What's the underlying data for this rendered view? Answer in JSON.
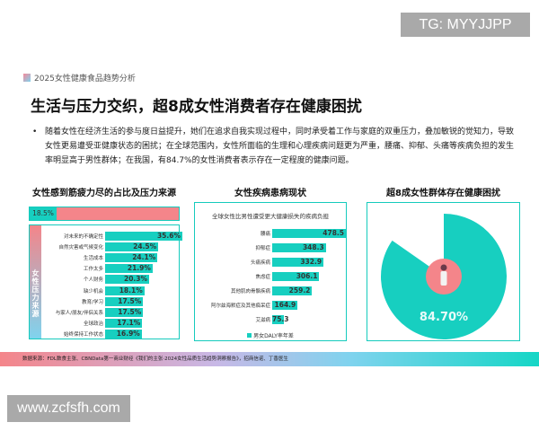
{
  "watermarks": {
    "top": "TG: MYYJJPP",
    "bottom": "www.zcfsfh.com"
  },
  "header": {
    "report": "2025女性健康食品趋势分析"
  },
  "title": "生活与压力交织，超8成女性消费者存在健康困扰",
  "paragraph": "随着女性在经济生活的参与度日益提升，她们在追求自我实现过程中，同时承受着工作与家庭的双重压力，叠加敏锐的觉知力，导致女性更易遭受亚健康状态的困扰；在全球范围内，女性所面临的生理和心理疾病问题更为严重，腰痛、抑郁、头痛等疾病负担的发生率明显高于男性群体；在我国，有84.7%的女性消费者表示存在一定程度的健康问题。",
  "colors": {
    "teal": "#17cfc0",
    "pink": "#f4858a"
  },
  "chart_data": [
    {
      "type": "bar",
      "title": "女性感到筋疲力尽的占比及压力来源",
      "overall_label": "18.5%",
      "overall_value": 18.5,
      "side_label": "女性压力来源",
      "categories": [
        "对未来的不确定性",
        "自然灾害或气候变化",
        "生活成本",
        "工作太多",
        "个人财务",
        "缺少机会",
        "教育/学习",
        "与家人/朋友/伴侣关系",
        "全球政治",
        "始终保持工作状态"
      ],
      "values": [
        35.6,
        24.5,
        24.1,
        21.9,
        20.3,
        18.1,
        17.5,
        17.5,
        17.1,
        16.9
      ],
      "labels": [
        "35.6%",
        "24.5%",
        "24.1%",
        "21.9%",
        "20.3%",
        "18.1%",
        "17.5%",
        "17.5%",
        "17.1%",
        "16.9%"
      ]
    },
    {
      "type": "bar",
      "title": "女性疾病患病现状",
      "subtitle": "全球女性比男性遭受更大健康损失的疾病负担",
      "categories": [
        "腰痛",
        "抑郁症",
        "头痛疾病",
        "焦虑症",
        "其他肌肉骨骼疾病",
        "阿尔兹海默症及其他痴呆症",
        "艾滋病"
      ],
      "values": [
        478.5,
        348.3,
        332.9,
        306.1,
        259.2,
        164.9,
        75.3
      ],
      "labels": [
        "478.5",
        "348.3",
        "332.9",
        "306.1",
        "259.2",
        "164.9",
        "75.3"
      ],
      "legend": "男女DALY率年差"
    },
    {
      "type": "pie",
      "title": "超8成女性群体存在健康困扰",
      "values": [
        84.7,
        15.3
      ],
      "label": "84.70%"
    }
  ],
  "footer": "数据来源：FDL数食主张、CBNData第一商业财经《我们的主张·2024女性品质生活趋势洞察报告》，招商信诺、丁香医生"
}
